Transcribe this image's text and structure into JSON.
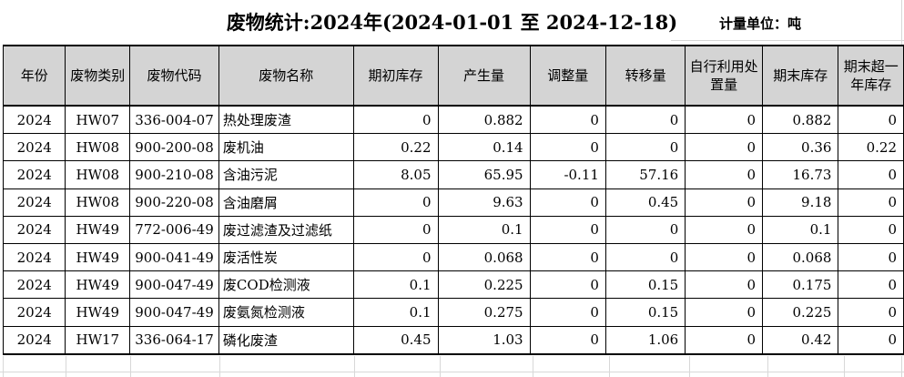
{
  "title": "废物统计:2024年(2024-01-01 至 2024-12-18)",
  "unit_label": "计量单位：吨",
  "table": {
    "columns": [
      "年份",
      "废物类别",
      "废物代码",
      "废物名称",
      "期初库存",
      "产生量",
      "调整量",
      "转移量",
      "自行利用处置量",
      "期末库存",
      "期末超一年库存"
    ],
    "rows": [
      [
        "2024",
        "HW07",
        "336-004-07",
        "热处理废渣",
        "0",
        "0.882",
        "0",
        "0",
        "0",
        "0.882",
        "0"
      ],
      [
        "2024",
        "HW08",
        "900-200-08",
        "废机油",
        "0.22",
        "0.14",
        "0",
        "0",
        "0",
        "0.36",
        "0.22"
      ],
      [
        "2024",
        "HW08",
        "900-210-08",
        "含油污泥",
        "8.05",
        "65.95",
        "-0.11",
        "57.16",
        "0",
        "16.73",
        "0"
      ],
      [
        "2024",
        "HW08",
        "900-220-08",
        "含油磨屑",
        "0",
        "9.63",
        "0",
        "0.45",
        "0",
        "9.18",
        "0"
      ],
      [
        "2024",
        "HW49",
        "772-006-49",
        "废过滤渣及过滤纸",
        "0",
        "0.1",
        "0",
        "0",
        "0",
        "0.1",
        "0"
      ],
      [
        "2024",
        "HW49",
        "900-041-49",
        "废活性炭",
        "0",
        "0.068",
        "0",
        "0",
        "0",
        "0.068",
        "0"
      ],
      [
        "2024",
        "HW49",
        "900-047-49",
        "废COD检测液",
        "0.1",
        "0.225",
        "0",
        "0.15",
        "0",
        "0.175",
        "0"
      ],
      [
        "2024",
        "HW49",
        "900-047-49",
        "废氨氮检测液",
        "0.1",
        "0.275",
        "0",
        "0.15",
        "0",
        "0.225",
        "0"
      ],
      [
        "2024",
        "HW17",
        "336-064-17",
        "磷化废渣",
        "0.45",
        "1.03",
        "0",
        "1.06",
        "0",
        "0.42",
        "0"
      ]
    ]
  },
  "colors": {
    "header_background": "#d4d4d4",
    "table_border": "#000000",
    "spreadsheet_gridline": "#d8d8d8",
    "page_background": "#ffffff",
    "text": "#000000"
  }
}
